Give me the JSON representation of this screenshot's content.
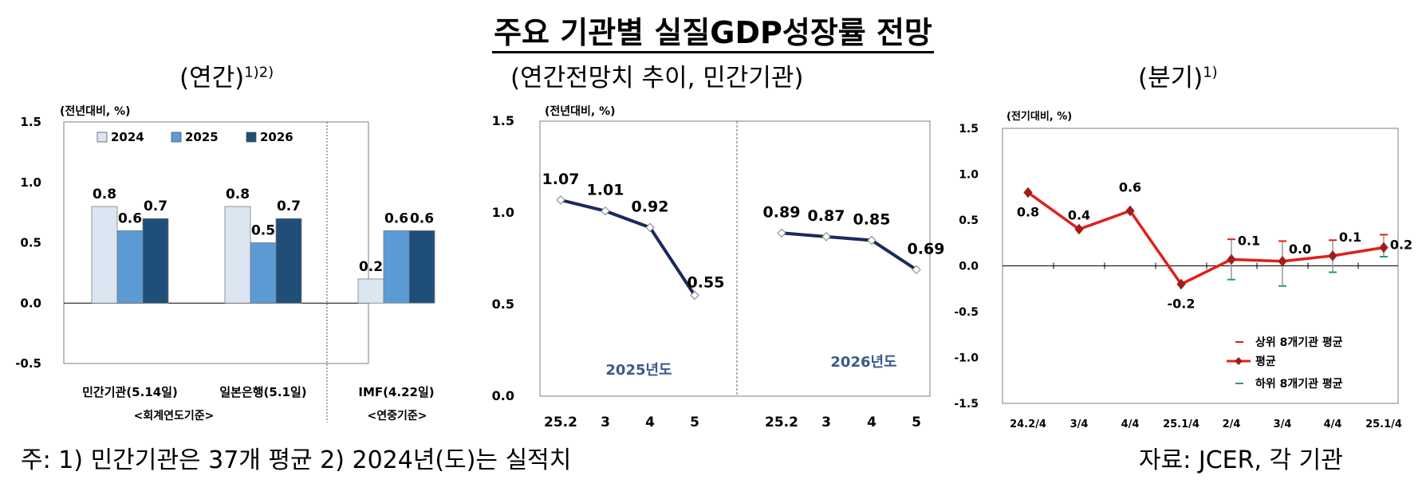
{
  "title": "주요 기관별 실질GDP성장률 전망",
  "subtitles": {
    "annual": "(연간)",
    "annual_sup": "1)2)",
    "trend": "(연간전망치 추이, 민간기관)",
    "quarterly": "(분기)",
    "quarterly_sup": "1)"
  },
  "footnote": "주: 1) 민간기관은 37개 평균    2) 2024년(도)는 실적치",
  "source": "자료: JCER, 각 기관",
  "colors": {
    "y2024": "#dce6f2",
    "y2025": "#5b9bd5",
    "y2026": "#1f4e79",
    "line1": "#1b2a5c",
    "line2": "#e0201b",
    "up": "#e0201b",
    "down": "#2e9a6b"
  },
  "chart_data": [
    {
      "type": "bar",
      "unit_label": "(전년대비, %)",
      "ylim": [
        -0.5,
        1.5
      ],
      "yticks": [
        "1.5",
        "1.0",
        "0.5",
        "0.0",
        "-0.5"
      ],
      "legend": [
        "2024",
        "2025",
        "2026"
      ],
      "groups": [
        {
          "label": "민간기관(5.14일)",
          "values": [
            0.8,
            0.6,
            0.7
          ],
          "value_labels": [
            "0.8",
            "0.6",
            "0.7"
          ]
        },
        {
          "label": "일본은행(5.1일)",
          "values": [
            0.8,
            0.5,
            0.7
          ],
          "value_labels": [
            "0.8",
            "0.5",
            "0.7"
          ]
        },
        {
          "label": "IMF(4.22일)",
          "values": [
            0.2,
            0.6,
            0.6
          ],
          "value_labels": [
            "0.2",
            "0.6",
            "0.6"
          ]
        }
      ],
      "basis": [
        "<회계연도기준>",
        "<연중기준>"
      ]
    },
    {
      "type": "line",
      "unit_label": "(전년대비, %)",
      "ylim": [
        0.0,
        1.5
      ],
      "yticks": [
        "1.5",
        "1.0",
        "0.5",
        "0.0"
      ],
      "panels": [
        {
          "label": "2025년도",
          "x": [
            "25.2",
            "3",
            "4",
            "5"
          ],
          "values": [
            1.07,
            1.01,
            0.92,
            0.55
          ],
          "value_labels": [
            "1.07",
            "1.01",
            "0.92",
            "0.55"
          ]
        },
        {
          "label": "2026년도",
          "x": [
            "25.2",
            "3",
            "4",
            "5"
          ],
          "values": [
            0.89,
            0.87,
            0.85,
            0.69
          ],
          "value_labels": [
            "0.89",
            "0.87",
            "0.85",
            "0.69"
          ]
        }
      ]
    },
    {
      "type": "line",
      "unit_label": "(전기대비, %)",
      "ylim": [
        -1.5,
        1.5
      ],
      "yticks": [
        "1.5",
        "1.0",
        "0.5",
        "0.0",
        "-0.5",
        "-1.0",
        "-1.5"
      ],
      "x": [
        "24.2/4",
        "3/4",
        "4/4",
        "25.1/4",
        "2/4",
        "3/4",
        "4/4",
        "25.1/4"
      ],
      "avg": [
        0.8,
        0.4,
        0.6,
        -0.2,
        0.07,
        0.05,
        0.11,
        0.2
      ],
      "avg_labels": [
        "0.8",
        "0.4",
        "0.6",
        "-0.2",
        "0.1",
        "0.0",
        "0.1",
        "0.2"
      ],
      "upper": [
        null,
        null,
        null,
        null,
        0.29,
        0.27,
        0.28,
        0.34
      ],
      "lower": [
        null,
        null,
        null,
        null,
        -0.15,
        -0.22,
        -0.07,
        0.1
      ],
      "legend": [
        "상위 8개기관 평균",
        "평균",
        "하위 8개기관 평균"
      ]
    }
  ]
}
